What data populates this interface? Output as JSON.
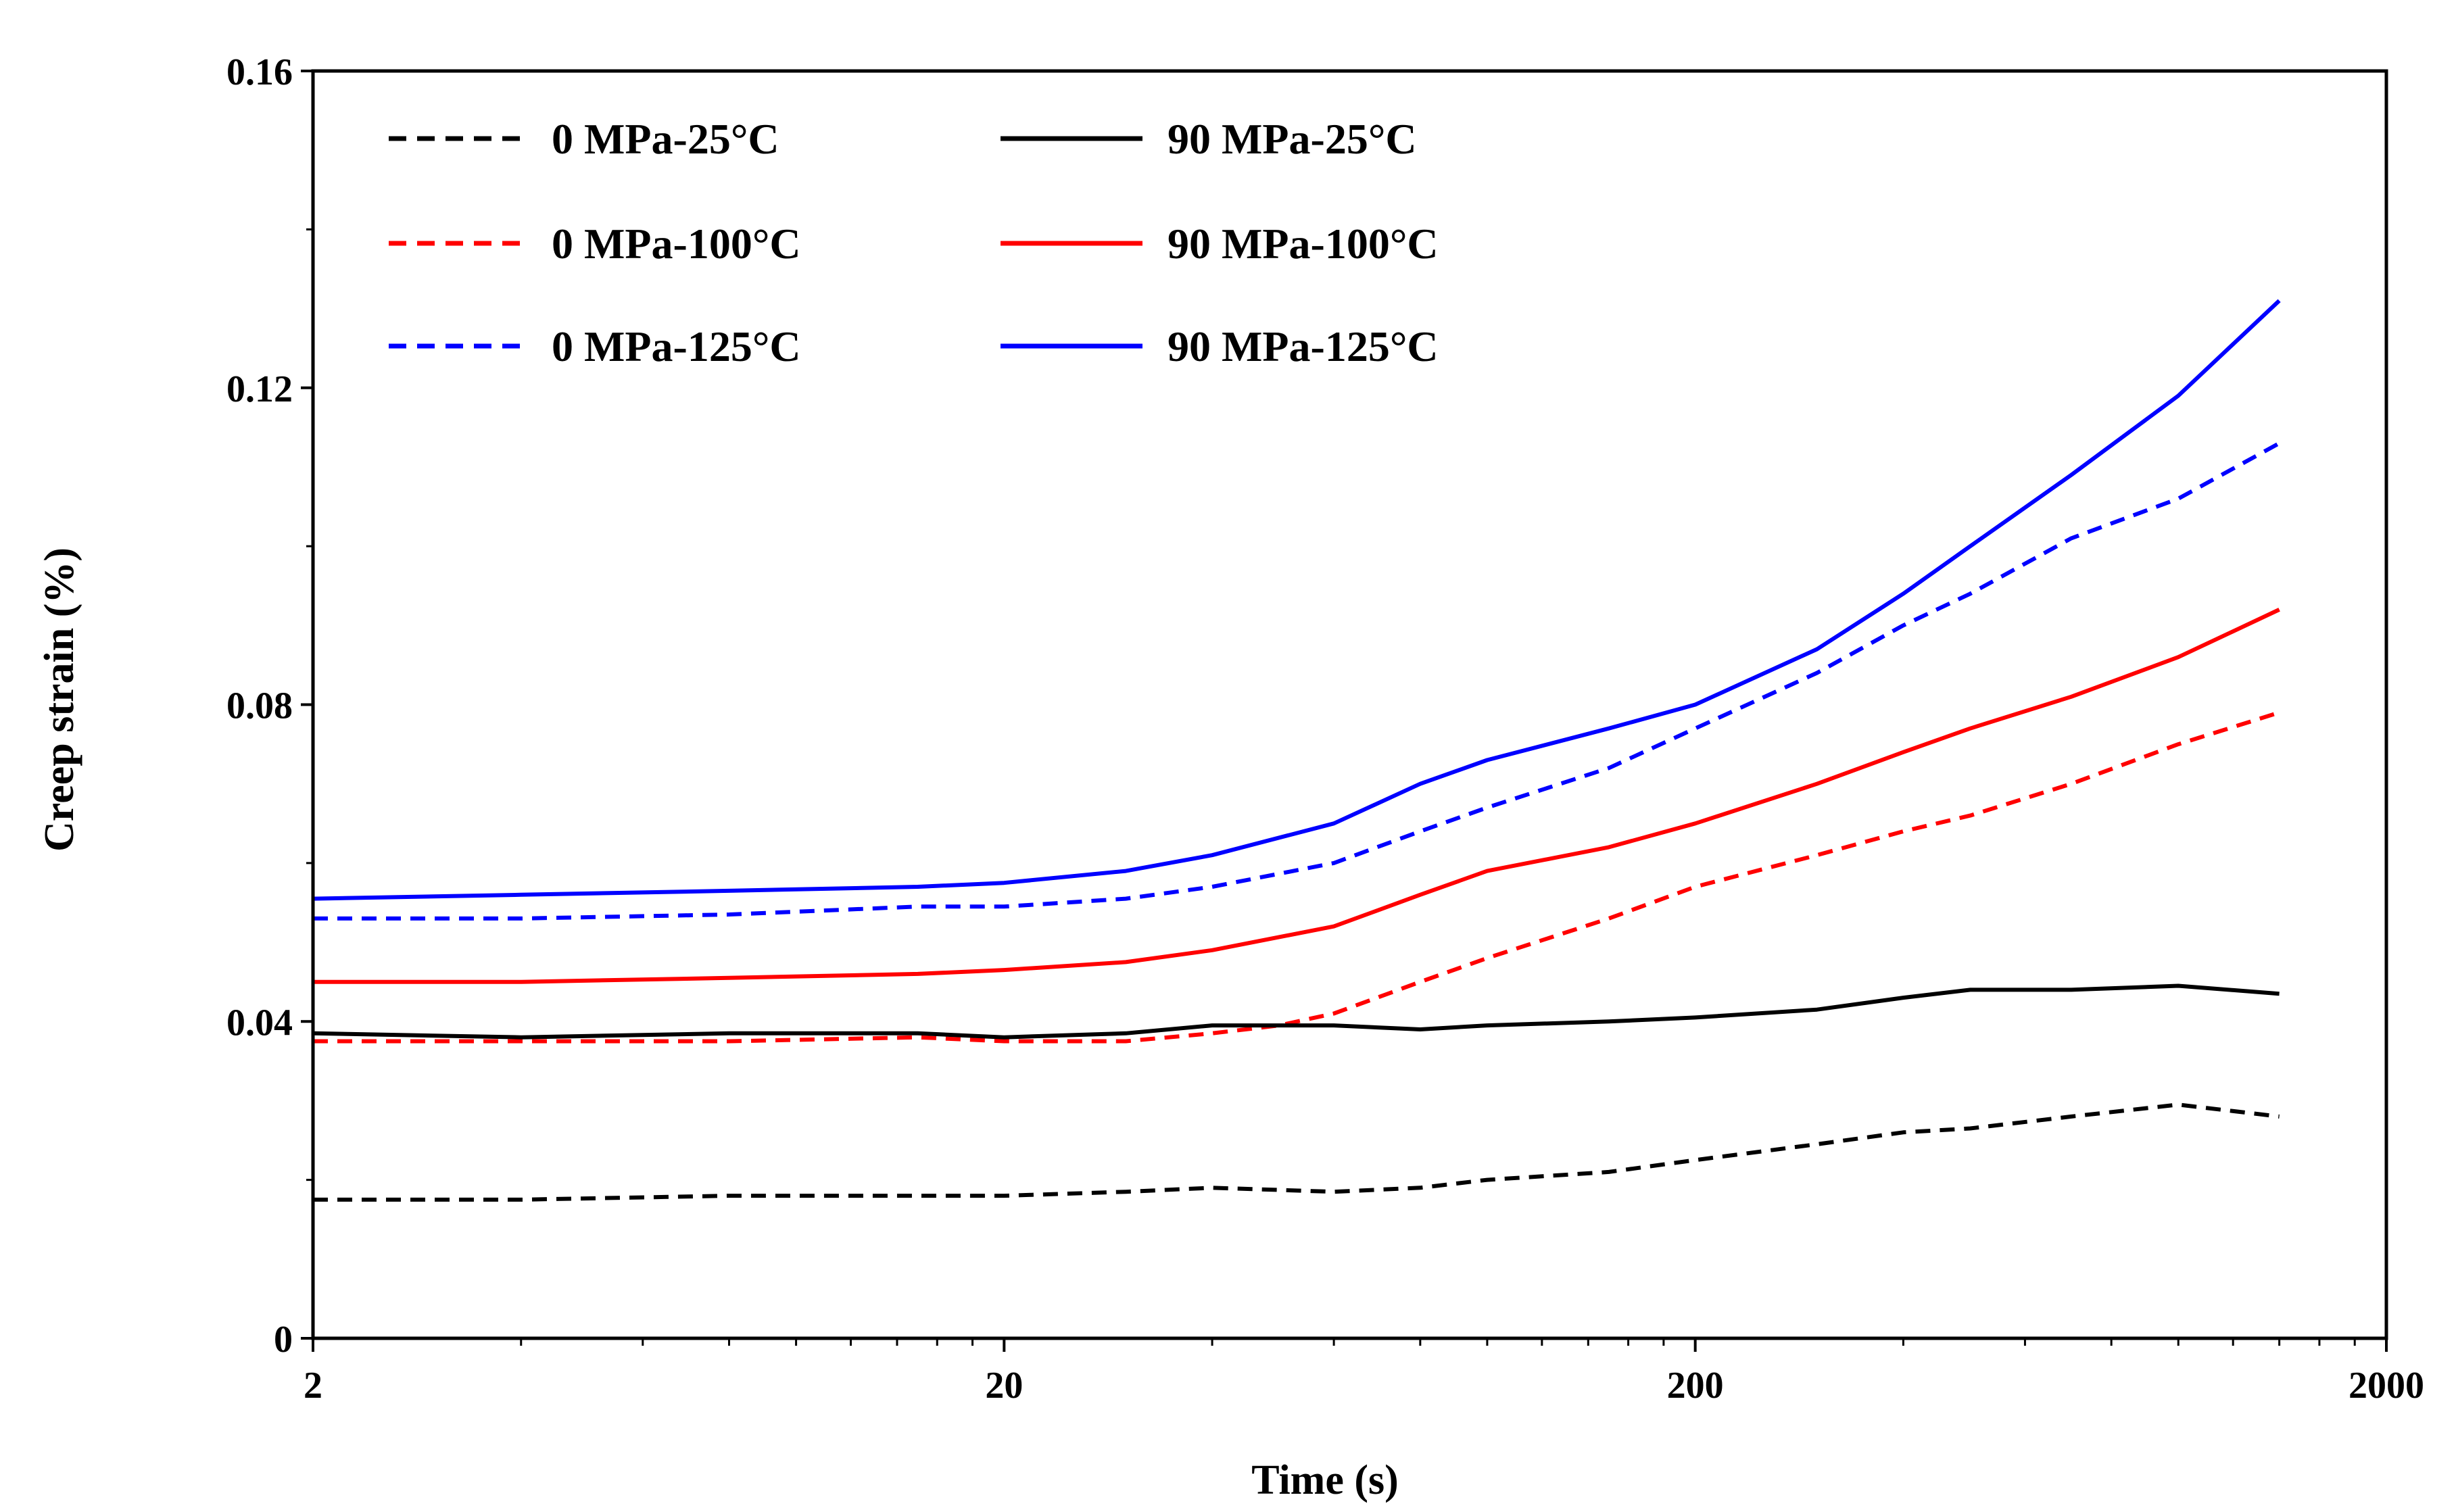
{
  "chart_data": {
    "type": "line",
    "title": "",
    "xlabel": "Time (s)",
    "ylabel": "Creep strain (%)",
    "x_scale": "log",
    "xlim": [
      2,
      2000
    ],
    "ylim": [
      0,
      0.16
    ],
    "x_ticks": [
      {
        "value": 2,
        "label": "2"
      },
      {
        "value": 20,
        "label": "20"
      },
      {
        "value": 200,
        "label": "200"
      },
      {
        "value": 2000,
        "label": "2000"
      }
    ],
    "y_ticks": [
      {
        "value": 0,
        "label": "0"
      },
      {
        "value": 0.04,
        "label": "0.04"
      },
      {
        "value": 0.08,
        "label": "0.08"
      },
      {
        "value": 0.12,
        "label": "0.12"
      },
      {
        "value": 0.16,
        "label": "0.16"
      }
    ],
    "legend_position": "top-left",
    "series": [
      {
        "name": "0 MPa-25°C",
        "color": "#000000",
        "dash": "dashed",
        "x": [
          2,
          4,
          8,
          15,
          20,
          30,
          40,
          60,
          80,
          100,
          150,
          200,
          300,
          400,
          500,
          700,
          1000,
          1400
        ],
        "y": [
          0.0175,
          0.0175,
          0.018,
          0.018,
          0.018,
          0.0185,
          0.019,
          0.0185,
          0.019,
          0.02,
          0.021,
          0.0225,
          0.0245,
          0.026,
          0.0265,
          0.028,
          0.0295,
          0.028
        ]
      },
      {
        "name": "0 MPa-100°C",
        "color": "#ff0000",
        "dash": "dashed",
        "x": [
          2,
          4,
          8,
          15,
          20,
          30,
          40,
          50,
          60,
          80,
          100,
          150,
          200,
          300,
          400,
          500,
          700,
          1000,
          1400
        ],
        "y": [
          0.0375,
          0.0375,
          0.0375,
          0.038,
          0.0375,
          0.0375,
          0.0385,
          0.0395,
          0.041,
          0.045,
          0.048,
          0.053,
          0.057,
          0.061,
          0.064,
          0.066,
          0.07,
          0.075,
          0.079
        ]
      },
      {
        "name": "0 MPa-125°C",
        "color": "#0000ff",
        "dash": "dashed",
        "x": [
          2,
          4,
          8,
          15,
          20,
          30,
          40,
          60,
          80,
          100,
          150,
          200,
          300,
          400,
          500,
          700,
          1000,
          1400
        ],
        "y": [
          0.053,
          0.053,
          0.0535,
          0.0545,
          0.0545,
          0.0555,
          0.057,
          0.06,
          0.064,
          0.067,
          0.072,
          0.077,
          0.084,
          0.09,
          0.094,
          0.101,
          0.106,
          0.113
        ]
      },
      {
        "name": "90 MPa-25°C",
        "color": "#000000",
        "dash": "solid",
        "x": [
          2,
          4,
          8,
          15,
          20,
          30,
          40,
          60,
          80,
          100,
          150,
          200,
          300,
          400,
          500,
          700,
          1000,
          1400
        ],
        "y": [
          0.0385,
          0.038,
          0.0385,
          0.0385,
          0.038,
          0.0385,
          0.0395,
          0.0395,
          0.039,
          0.0395,
          0.04,
          0.0405,
          0.0415,
          0.043,
          0.044,
          0.044,
          0.0445,
          0.0435
        ]
      },
      {
        "name": "90 MPa-100°C",
        "color": "#ff0000",
        "dash": "solid",
        "x": [
          2,
          4,
          8,
          15,
          20,
          30,
          40,
          60,
          80,
          100,
          150,
          200,
          300,
          400,
          500,
          700,
          1000,
          1400
        ],
        "y": [
          0.045,
          0.045,
          0.0455,
          0.046,
          0.0465,
          0.0475,
          0.049,
          0.052,
          0.056,
          0.059,
          0.062,
          0.065,
          0.07,
          0.074,
          0.077,
          0.081,
          0.086,
          0.092
        ]
      },
      {
        "name": "90 MPa-125°C",
        "color": "#0000ff",
        "dash": "solid",
        "x": [
          2,
          4,
          8,
          15,
          20,
          30,
          40,
          60,
          80,
          100,
          150,
          200,
          300,
          400,
          500,
          700,
          1000,
          1400
        ],
        "y": [
          0.0555,
          0.056,
          0.0565,
          0.057,
          0.0575,
          0.059,
          0.061,
          0.065,
          0.07,
          0.073,
          0.077,
          0.08,
          0.087,
          0.094,
          0.1,
          0.109,
          0.119,
          0.131
        ]
      }
    ]
  }
}
